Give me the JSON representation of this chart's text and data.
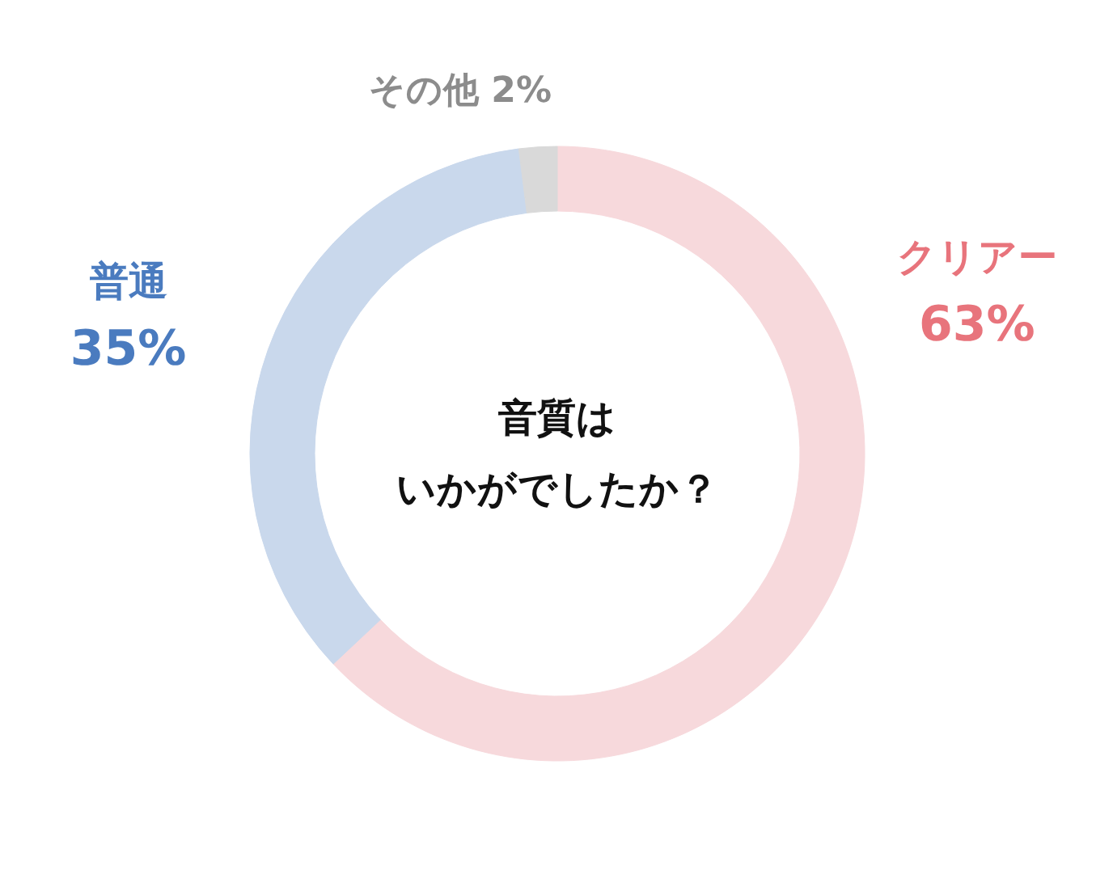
{
  "chart_data": {
    "type": "donut",
    "title": "音質は",
    "subtitle": "いかがでしたか？",
    "legend": false,
    "categories": [
      "クリアー",
      "普通",
      "その他"
    ],
    "values": [
      63,
      35,
      2
    ],
    "value_labels": [
      "63%",
      "35%",
      "2%"
    ],
    "colors": [
      "#f7d9dc",
      "#c9d8ec",
      "#d9d9d9"
    ]
  }
}
